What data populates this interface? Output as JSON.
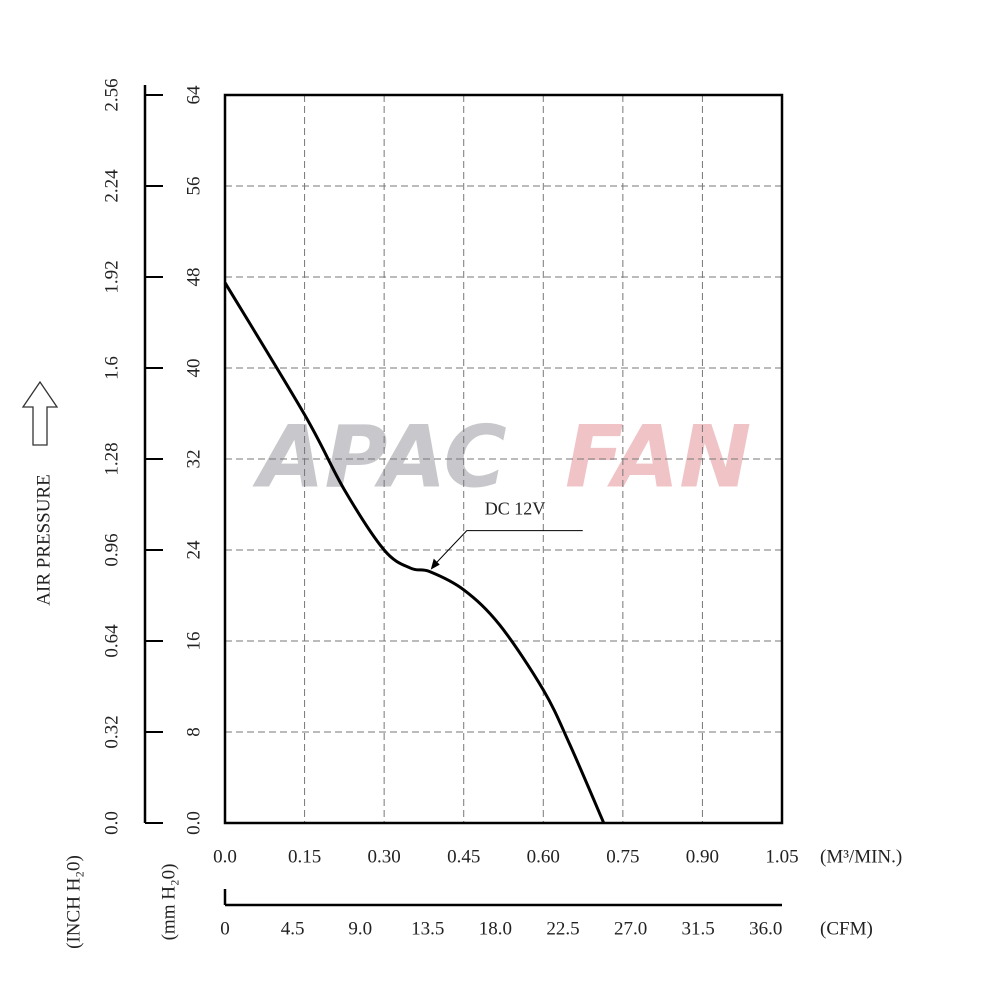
{
  "chart_data": {
    "type": "line",
    "x": [
      0,
      0.15,
      0.225,
      0.3,
      0.35,
      0.386,
      0.45,
      0.518,
      0.6,
      0.65,
      0.714
    ],
    "series": [
      {
        "name": "DC 12V",
        "color": "#000000",
        "values": [
          47.5,
          35.9,
          29.3,
          24.0,
          22.4,
          22.1,
          20.5,
          17.4,
          11.7,
          6.9,
          0
        ]
      }
    ],
    "annotation": {
      "x": 0.386,
      "y": 22.1
    },
    "xlabel": "(M³/MIN.)",
    "xlim": [
      0,
      1.05
    ],
    "xticks": [
      {
        "value": 0,
        "label": "0.0"
      },
      0.15,
      {
        "value": 0.3,
        "label": "0.30"
      },
      0.45,
      {
        "value": 0.6,
        "label": "0.60"
      },
      0.75,
      {
        "value": 0.9,
        "label": "0.90"
      },
      1.05
    ],
    "ylabel": "AIR PRESSURE",
    "yunit": "(mm H₂0)",
    "ylim": [
      0,
      64
    ],
    "yticks": [
      {
        "value": 0,
        "label": "0.0"
      },
      8,
      16,
      24,
      32,
      40,
      48,
      56,
      64
    ],
    "y2label": "(INCH H₂0)",
    "y2lim": [
      0,
      2.56
    ],
    "y2ticks": [
      {
        "value": 0,
        "label": "0.0"
      },
      0.32,
      0.64,
      0.96,
      1.28,
      1.6,
      1.92,
      2.24,
      2.56
    ],
    "x2label": "(CFM)",
    "x2lim": [
      0,
      37.08
    ],
    "x2ticks": [
      0,
      4.5,
      {
        "value": 9,
        "label": "9.0"
      },
      13.5,
      {
        "value": 18,
        "label": "18.0"
      },
      22.5,
      {
        "value": 27,
        "label": "27.0"
      },
      31.5,
      {
        "value": 36,
        "label": "36.0"
      }
    ],
    "grid": true,
    "watermark": [
      "APAC",
      "FAN"
    ]
  }
}
